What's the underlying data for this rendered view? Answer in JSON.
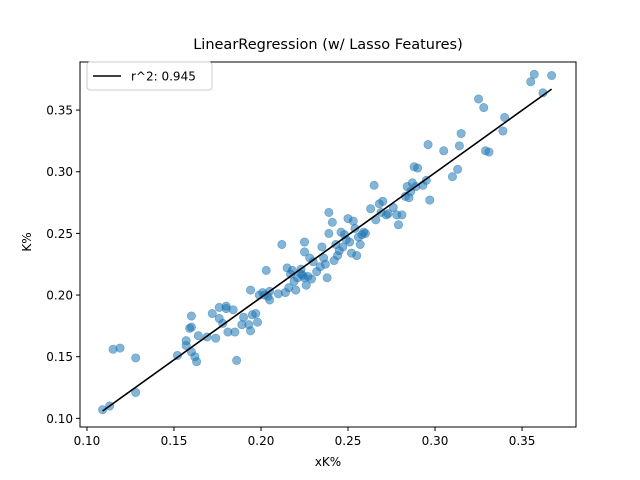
{
  "chart_data": {
    "type": "scatter",
    "title": "LinearRegression (w/ Lasso Features)",
    "xlabel": "xK%",
    "ylabel": "K%",
    "xlim": [
      0.096,
      0.381
    ],
    "ylim": [
      0.093,
      0.389
    ],
    "xticks": [
      0.1,
      0.15,
      0.2,
      0.25,
      0.3,
      0.35
    ],
    "xtick_labels": [
      "0.10",
      "0.15",
      "0.20",
      "0.25",
      "0.30",
      "0.35"
    ],
    "yticks": [
      0.1,
      0.15,
      0.2,
      0.25,
      0.3,
      0.35
    ],
    "ytick_labels": [
      "0.10",
      "0.15",
      "0.20",
      "0.25",
      "0.30",
      "0.35"
    ],
    "grid": false,
    "legend_position": "top-left",
    "scatter_color": "#1f77b4",
    "line_color": "#000000",
    "series": [
      {
        "kind": "points",
        "points": [
          [
            0.109,
            0.107
          ],
          [
            0.113,
            0.11
          ],
          [
            0.115,
            0.156
          ],
          [
            0.119,
            0.157
          ],
          [
            0.128,
            0.149
          ],
          [
            0.128,
            0.121
          ],
          [
            0.152,
            0.151
          ],
          [
            0.157,
            0.159
          ],
          [
            0.157,
            0.163
          ],
          [
            0.159,
            0.173
          ],
          [
            0.16,
            0.174
          ],
          [
            0.16,
            0.183
          ],
          [
            0.16,
            0.154
          ],
          [
            0.162,
            0.15
          ],
          [
            0.163,
            0.146
          ],
          [
            0.164,
            0.167
          ],
          [
            0.169,
            0.166
          ],
          [
            0.172,
            0.185
          ],
          [
            0.174,
            0.165
          ],
          [
            0.176,
            0.181
          ],
          [
            0.176,
            0.19
          ],
          [
            0.178,
            0.177
          ],
          [
            0.18,
            0.191
          ],
          [
            0.18,
            0.189
          ],
          [
            0.181,
            0.17
          ],
          [
            0.184,
            0.188
          ],
          [
            0.185,
            0.17
          ],
          [
            0.186,
            0.147
          ],
          [
            0.189,
            0.176
          ],
          [
            0.19,
            0.182
          ],
          [
            0.193,
            0.176
          ],
          [
            0.194,
            0.171
          ],
          [
            0.194,
            0.204
          ],
          [
            0.195,
            0.184
          ],
          [
            0.197,
            0.185
          ],
          [
            0.198,
            0.178
          ],
          [
            0.199,
            0.2
          ],
          [
            0.201,
            0.202
          ],
          [
            0.202,
            0.2
          ],
          [
            0.203,
            0.22
          ],
          [
            0.204,
            0.199
          ],
          [
            0.205,
            0.203
          ],
          [
            0.205,
            0.196
          ],
          [
            0.21,
            0.201
          ],
          [
            0.212,
            0.241
          ],
          [
            0.214,
            0.202
          ],
          [
            0.215,
            0.222
          ],
          [
            0.216,
            0.206
          ],
          [
            0.217,
            0.217
          ],
          [
            0.218,
            0.22
          ],
          [
            0.219,
            0.211
          ],
          [
            0.22,
            0.204
          ],
          [
            0.221,
            0.214
          ],
          [
            0.223,
            0.221
          ],
          [
            0.223,
            0.217
          ],
          [
            0.224,
            0.216
          ],
          [
            0.225,
            0.214
          ],
          [
            0.225,
            0.235
          ],
          [
            0.225,
            0.243
          ],
          [
            0.226,
            0.208
          ],
          [
            0.227,
            0.215
          ],
          [
            0.228,
            0.23
          ],
          [
            0.229,
            0.213
          ],
          [
            0.23,
            0.227
          ],
          [
            0.232,
            0.219
          ],
          [
            0.234,
            0.223
          ],
          [
            0.235,
            0.239
          ],
          [
            0.236,
            0.23
          ],
          [
            0.237,
            0.225
          ],
          [
            0.238,
            0.214
          ],
          [
            0.239,
            0.25
          ],
          [
            0.239,
            0.267
          ],
          [
            0.241,
            0.259
          ],
          [
            0.242,
            0.228
          ],
          [
            0.243,
            0.241
          ],
          [
            0.244,
            0.232
          ],
          [
            0.245,
            0.236
          ],
          [
            0.246,
            0.251
          ],
          [
            0.247,
            0.239
          ],
          [
            0.248,
            0.249
          ],
          [
            0.249,
            0.245
          ],
          [
            0.25,
            0.262
          ],
          [
            0.251,
            0.243
          ],
          [
            0.252,
            0.234
          ],
          [
            0.253,
            0.26
          ],
          [
            0.254,
            0.254
          ],
          [
            0.255,
            0.232
          ],
          [
            0.256,
            0.247
          ],
          [
            0.257,
            0.241
          ],
          [
            0.258,
            0.249
          ],
          [
            0.259,
            0.251
          ],
          [
            0.26,
            0.25
          ],
          [
            0.263,
            0.27
          ],
          [
            0.265,
            0.289
          ],
          [
            0.266,
            0.261
          ],
          [
            0.268,
            0.274
          ],
          [
            0.269,
            0.267
          ],
          [
            0.27,
            0.276
          ],
          [
            0.272,
            0.265
          ],
          [
            0.273,
            0.266
          ],
          [
            0.276,
            0.271
          ],
          [
            0.278,
            0.265
          ],
          [
            0.279,
            0.257
          ],
          [
            0.281,
            0.265
          ],
          [
            0.283,
            0.28
          ],
          [
            0.284,
            0.288
          ],
          [
            0.285,
            0.279
          ],
          [
            0.286,
            0.284
          ],
          [
            0.287,
            0.291
          ],
          [
            0.288,
            0.304
          ],
          [
            0.289,
            0.288
          ],
          [
            0.29,
            0.303
          ],
          [
            0.293,
            0.289
          ],
          [
            0.295,
            0.293
          ],
          [
            0.296,
            0.322
          ],
          [
            0.297,
            0.277
          ],
          [
            0.305,
            0.317
          ],
          [
            0.31,
            0.296
          ],
          [
            0.313,
            0.302
          ],
          [
            0.314,
            0.321
          ],
          [
            0.315,
            0.331
          ],
          [
            0.325,
            0.359
          ],
          [
            0.328,
            0.352
          ],
          [
            0.329,
            0.317
          ],
          [
            0.331,
            0.316
          ],
          [
            0.339,
            0.333
          ],
          [
            0.34,
            0.344
          ],
          [
            0.355,
            0.373
          ],
          [
            0.357,
            0.379
          ],
          [
            0.362,
            0.364
          ],
          [
            0.367,
            0.378
          ]
        ]
      },
      {
        "kind": "line",
        "name": "r^2: 0.945",
        "points": [
          [
            0.109,
            0.106
          ],
          [
            0.367,
            0.367
          ]
        ]
      }
    ]
  }
}
